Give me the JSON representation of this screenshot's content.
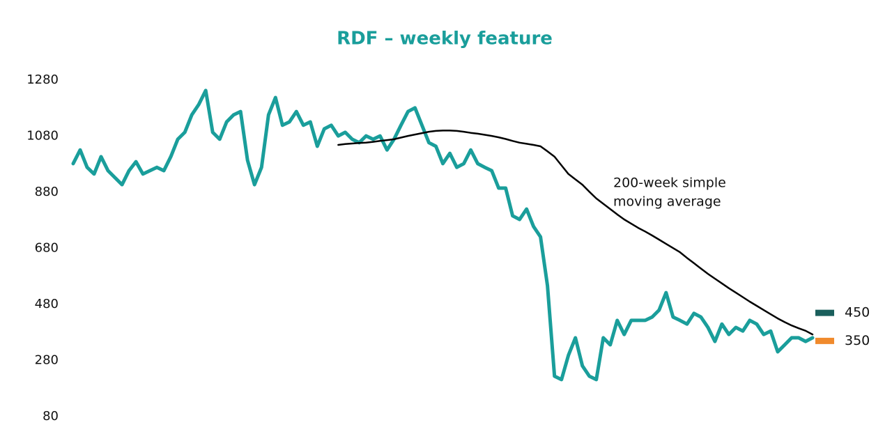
{
  "chart_data": {
    "type": "line",
    "title": "RDF – weekly feature",
    "ylim": [
      80,
      1280
    ],
    "yticks": [
      80,
      280,
      480,
      680,
      880,
      1080,
      1280
    ],
    "grid": false,
    "series": [
      {
        "name": "RDF",
        "color": "#1a9e9b",
        "values": [
          982,
          1031,
          969,
          945,
          1007,
          957,
          932,
          907,
          957,
          989,
          945,
          957,
          969,
          957,
          1007,
          1069,
          1094,
          1156,
          1193,
          1243,
          1094,
          1069,
          1131,
          1156,
          1168,
          994,
          907,
          969,
          1156,
          1218,
          1119,
          1131,
          1168,
          1119,
          1131,
          1044,
          1106,
          1119,
          1081,
          1094,
          1069,
          1057,
          1081,
          1069,
          1081,
          1031,
          1069,
          1119,
          1168,
          1181,
          1119,
          1057,
          1044,
          982,
          1019,
          969,
          982,
          1031,
          982,
          969,
          957,
          895,
          895,
          796,
          783,
          820,
          758,
          721,
          547,
          224,
          212,
          299,
          361,
          261,
          224,
          212,
          361,
          336,
          423,
          373,
          423,
          423,
          423,
          435,
          460,
          522,
          435,
          423,
          410,
          448,
          435,
          398,
          348,
          410,
          373,
          398,
          385,
          423,
          410,
          373,
          385,
          311,
          336,
          361,
          361,
          348,
          361
        ]
      },
      {
        "name": "200-week simple moving average",
        "color": "#000000",
        "values": [
          null,
          null,
          null,
          null,
          null,
          null,
          null,
          null,
          null,
          null,
          null,
          null,
          null,
          null,
          null,
          null,
          null,
          null,
          null,
          null,
          null,
          null,
          null,
          null,
          null,
          null,
          null,
          null,
          null,
          null,
          null,
          null,
          null,
          null,
          null,
          null,
          null,
          null,
          1049,
          1052,
          1054,
          1056,
          1057,
          1060,
          1063,
          1066,
          1069,
          1075,
          1081,
          1086,
          1091,
          1096,
          1099,
          1100,
          1100,
          1099,
          1096,
          1092,
          1089,
          1085,
          1081,
          1076,
          1070,
          1063,
          1057,
          1053,
          1049,
          1044,
          1026,
          1007,
          976,
          945,
          926,
          907,
          882,
          858,
          839,
          820,
          801,
          783,
          768,
          753,
          740,
          726,
          711,
          696,
          681,
          666,
          646,
          627,
          608,
          589,
          572,
          555,
          538,
          522,
          506,
          490,
          475,
          460,
          445,
          430,
          417,
          405,
          395,
          386,
          373
        ]
      }
    ],
    "annotation": [
      "200-week simple",
      "moving average"
    ],
    "levels": [
      {
        "value": 450,
        "color": "#1a5f5c"
      },
      {
        "value": 350,
        "color": "#f08a2c"
      }
    ]
  }
}
